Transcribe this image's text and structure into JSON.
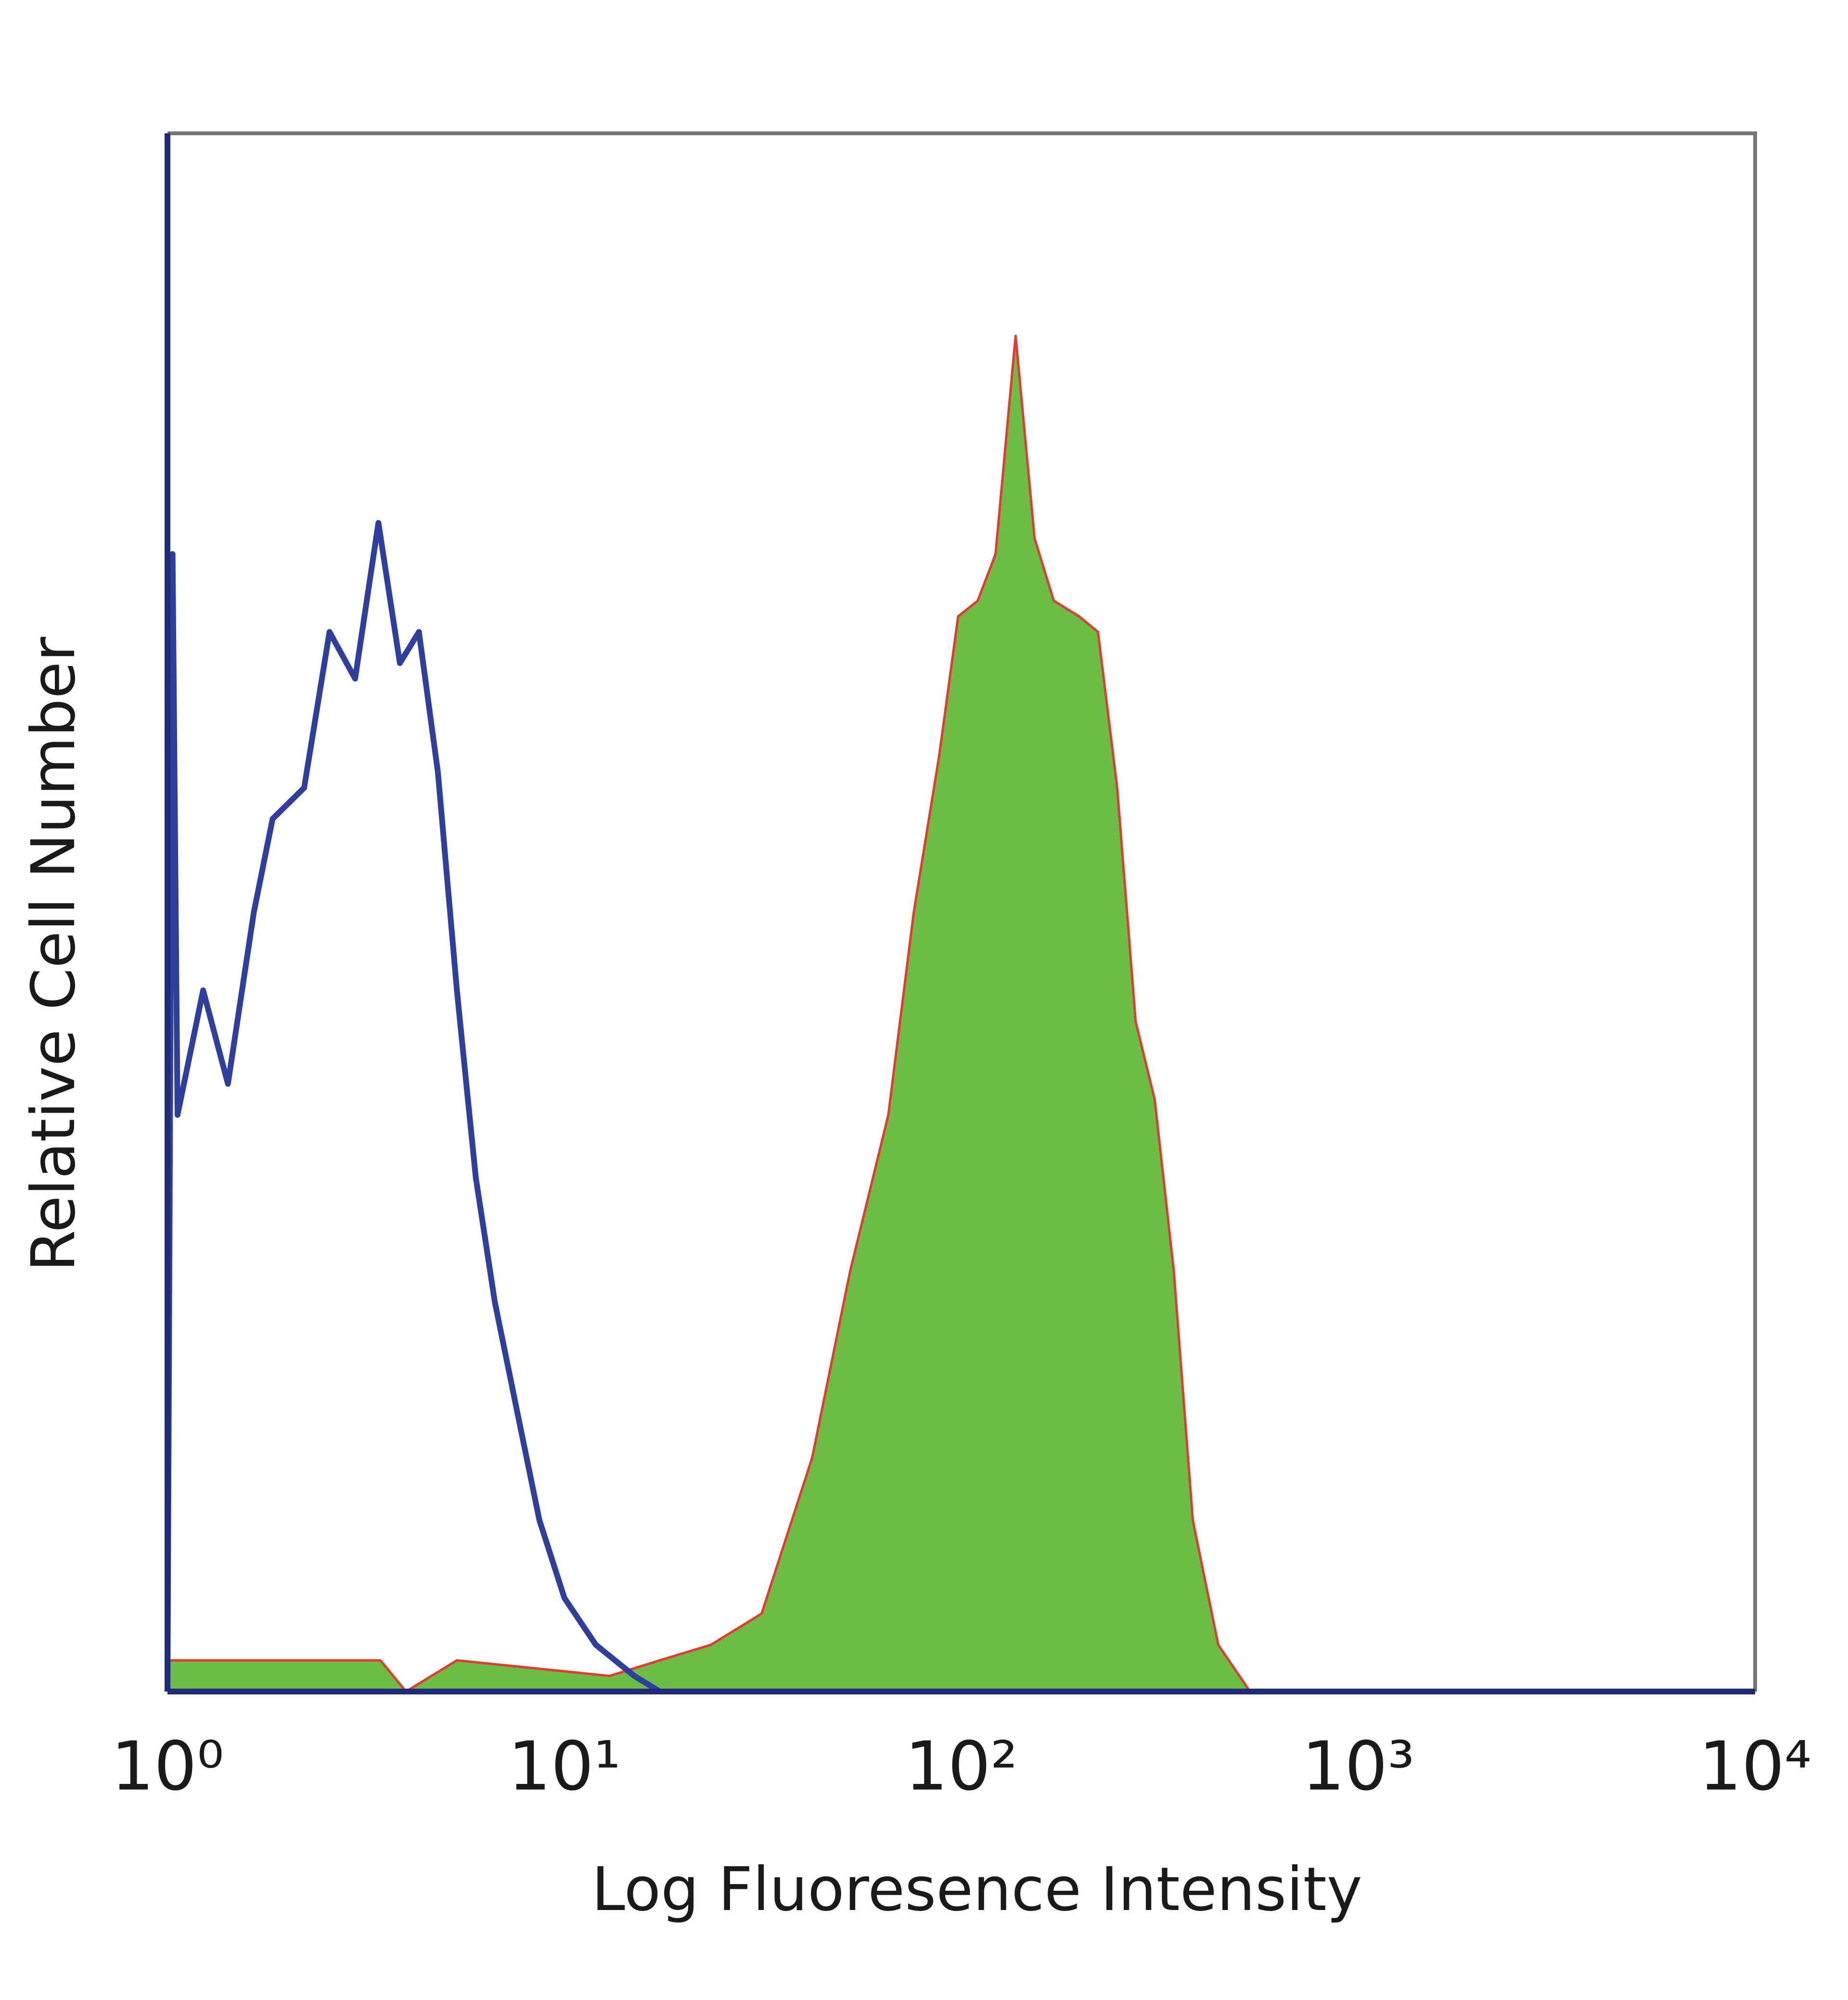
{
  "chart_data": {
    "type": "histogram-overlay",
    "xlabel": "Log Fluoresence Intensity",
    "ylabel": "Relative Cell Number",
    "xscale": "log",
    "xlim": [
      1,
      10000
    ],
    "xticks": [
      {
        "value": 1,
        "label": "10⁰"
      },
      {
        "value": 10,
        "label": "10¹"
      },
      {
        "value": 100,
        "label": "10²"
      },
      {
        "value": 1000,
        "label": "10³"
      },
      {
        "value": 10000,
        "label": "10⁴"
      }
    ],
    "ylim": [
      0,
      100
    ],
    "series": [
      {
        "color": "#e53b2f",
        "fill": "#6cbd45",
        "x": [
          1,
          3.44,
          3.99,
          5.36,
          13.0,
          17.4,
          23.4,
          31.4,
          42.1,
          52.5,
          65.5,
          75.9,
          87.9,
          98.2,
          110,
          122,
          137,
          153,
          171,
          198,
          221,
          247,
          275,
          307,
          343,
          383,
          444,
          534,
          10000
        ],
        "values": [
          2,
          2,
          0,
          2,
          1,
          2,
          3,
          5,
          15,
          27,
          37,
          50,
          60,
          69,
          70,
          73,
          87,
          74,
          70,
          69,
          68,
          58,
          43,
          38,
          27,
          11,
          3,
          0,
          0
        ]
      },
      {
        "color": "#2e3f9e",
        "x": [
          1,
          1.03,
          1.06,
          1.23,
          1.42,
          1.65,
          1.84,
          2.21,
          2.56,
          2.97,
          3.4,
          3.85,
          4.3,
          4.8,
          5.36,
          5.98,
          6.68,
          7.74,
          8.65,
          10.0,
          12.0,
          15.0,
          17.4,
          31.4,
          10000
        ],
        "values": [
          0,
          73,
          37,
          45,
          39,
          50,
          56,
          58,
          68,
          65,
          75,
          66,
          68,
          59,
          45,
          33,
          25,
          17,
          11,
          6,
          3,
          1,
          0,
          0,
          0
        ]
      }
    ]
  }
}
